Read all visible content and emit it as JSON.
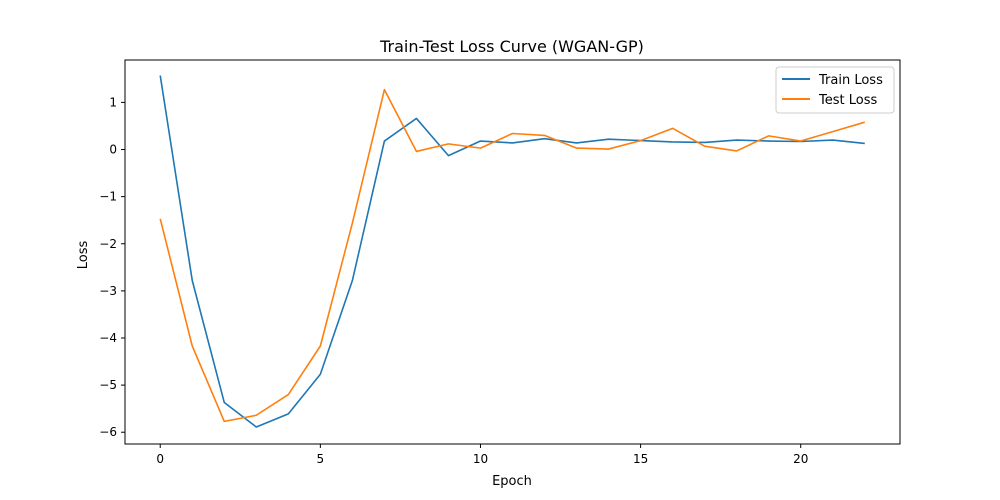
{
  "chart_data": {
    "type": "line",
    "title": "Train-Test Loss Curve (WGAN-GP)",
    "xlabel": "Epoch",
    "ylabel": "Loss",
    "xlim": [
      -1.1,
      23.1
    ],
    "ylim": [
      -6.25,
      1.9
    ],
    "xticks": [
      0,
      5,
      10,
      15,
      20
    ],
    "yticks": [
      -6,
      -5,
      -4,
      -3,
      -2,
      -1,
      0,
      1
    ],
    "ytick_labels": [
      "−6",
      "−5",
      "−4",
      "−3",
      "−2",
      "−1",
      "0",
      "1"
    ],
    "legend_position": "top-right",
    "grid": false,
    "x": [
      0,
      1,
      2,
      3,
      4,
      5,
      6,
      7,
      8,
      9,
      10,
      11,
      12,
      13,
      14,
      15,
      16,
      17,
      18,
      19,
      20,
      21,
      22
    ],
    "series": [
      {
        "name": "Train Loss",
        "color": "#1f77b4",
        "values": [
          1.57,
          -2.78,
          -5.37,
          -5.89,
          -5.61,
          -4.77,
          -2.78,
          0.18,
          0.66,
          -0.13,
          0.18,
          0.14,
          0.23,
          0.14,
          0.22,
          0.19,
          0.16,
          0.15,
          0.2,
          0.18,
          0.17,
          0.2,
          0.13
        ]
      },
      {
        "name": "Test Loss",
        "color": "#ff7f0e",
        "values": [
          -1.47,
          -4.17,
          -5.77,
          -5.64,
          -5.2,
          -4.17,
          -1.56,
          1.27,
          -0.04,
          0.12,
          0.03,
          0.34,
          0.3,
          0.03,
          0.01,
          0.19,
          0.45,
          0.07,
          -0.03,
          0.29,
          0.18,
          0.38,
          0.58
        ]
      }
    ]
  }
}
